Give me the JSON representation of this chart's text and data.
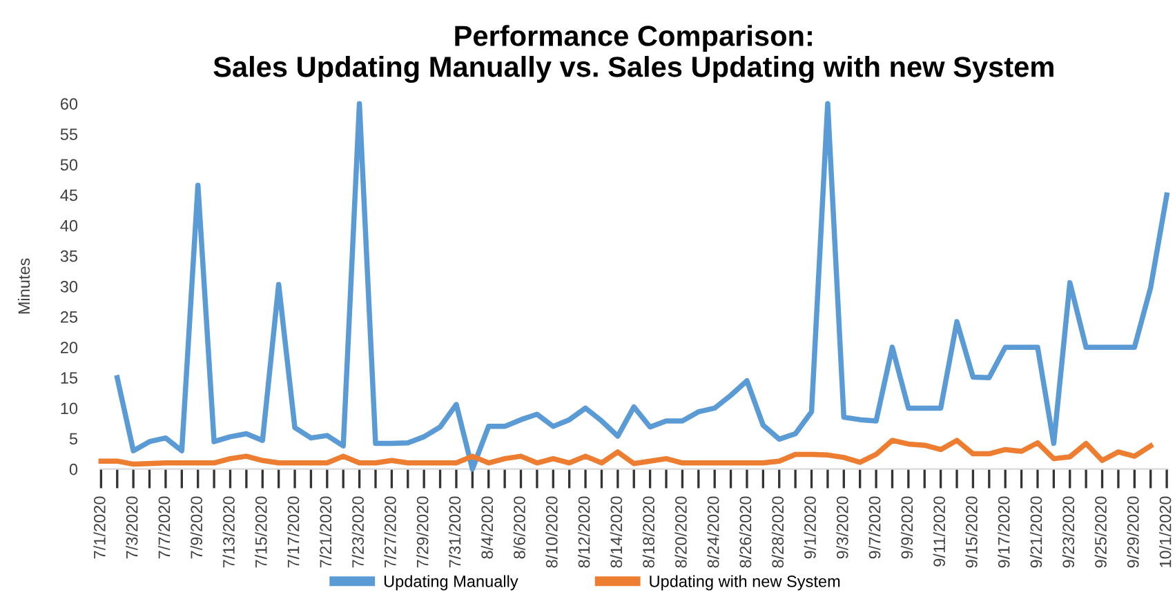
{
  "chart_data": {
    "type": "line",
    "title": "Performance Comparison:\nSales Updating Manually vs. Sales Updating with new System",
    "ylabel": "Minutes",
    "categories": [
      "7/1/2020",
      null,
      "7/3/2020",
      null,
      "7/7/2020",
      null,
      "7/9/2020",
      null,
      "7/13/2020",
      null,
      "7/15/2020",
      null,
      "7/17/2020",
      null,
      "7/21/2020",
      null,
      "7/23/2020",
      null,
      "7/27/2020",
      null,
      "7/29/2020",
      null,
      "7/31/2020",
      null,
      "8/4/2020",
      null,
      "8/6/2020",
      null,
      "8/10/2020",
      null,
      "8/12/2020",
      null,
      "8/14/2020",
      null,
      "8/18/2020",
      null,
      "8/20/2020",
      null,
      "8/24/2020",
      null,
      "8/26/2020",
      null,
      "8/28/2020",
      null,
      "9/1/2020",
      null,
      "9/3/2020",
      null,
      "9/7/2020",
      null,
      "9/9/2020",
      null,
      "9/11/2020",
      null,
      "9/15/2020",
      null,
      "9/17/2020",
      null,
      "9/21/2020",
      null,
      "9/23/2020",
      null,
      "9/25/2020",
      null,
      "9/29/2020",
      null,
      "10/1/2020"
    ],
    "series": [
      {
        "name": "Updating Manually",
        "color": "#5b9bd5",
        "values": [
          null,
          15,
          3,
          4.5,
          5.1,
          3,
          46.6,
          4.5,
          5.3,
          5.8,
          4.7,
          30.3,
          6.8,
          5.1,
          5.5,
          3.8,
          60,
          4.2,
          4.2,
          4.3,
          5.3,
          6.9,
          10.6,
          0,
          7,
          7,
          8.1,
          9,
          7,
          8.1,
          10,
          7.9,
          5.4,
          10.2,
          6.9,
          7.9,
          7.9,
          9.4,
          10,
          12.1,
          14.5,
          7.2,
          4.9,
          5.8,
          9.4,
          60,
          8.5,
          8.1,
          7.9,
          20,
          10,
          10,
          10,
          24.2,
          15.1,
          15,
          20,
          20,
          20,
          4.2,
          30.6,
          20,
          20,
          20,
          20,
          29.8,
          45
        ]
      },
      {
        "name": "Updating with new System",
        "color": "#ed7d31",
        "values": [
          1.3,
          1.3,
          0.8,
          0.9,
          1,
          1,
          1,
          1,
          1.7,
          2.1,
          1.4,
          1,
          1,
          1,
          1,
          2.1,
          1,
          1,
          1.4,
          1,
          1,
          1,
          1,
          2.1,
          1,
          1.7,
          2.1,
          1,
          1.7,
          1,
          2.1,
          1,
          2.8,
          0.9,
          1.3,
          1.7,
          1,
          1,
          1,
          1,
          1,
          1,
          1.3,
          2.4,
          2.4,
          2.3,
          1.9,
          1.1,
          2.4,
          4.7,
          4.1,
          3.9,
          3.2,
          4.7,
          2.5,
          2.5,
          3.2,
          2.9,
          4.3,
          1.7,
          2,
          4.2,
          1.4,
          2.8,
          2.1,
          3.8,
          null
        ]
      }
    ],
    "ylim": [
      0,
      60
    ],
    "yticks": [
      0,
      5,
      10,
      15,
      20,
      25,
      30,
      35,
      40,
      45,
      50,
      55,
      60
    ],
    "grid": false,
    "legend": "bottom",
    "marker": "none",
    "line_style": "solid"
  }
}
